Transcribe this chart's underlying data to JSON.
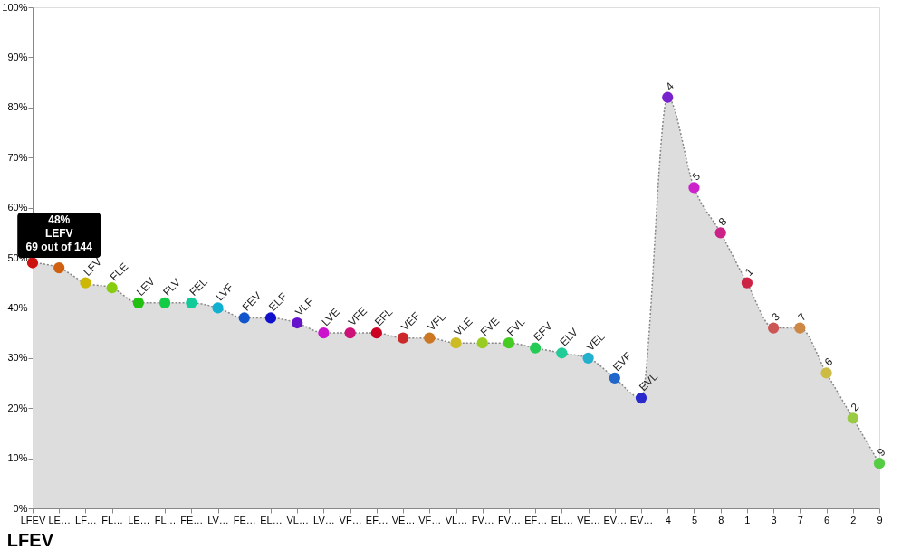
{
  "chart_data": {
    "type": "area",
    "title": "LFEV",
    "categories": [
      "LFEV",
      "LE…",
      "LF…",
      "FL…",
      "LE…",
      "FL…",
      "FE…",
      "LV…",
      "FE…",
      "EL…",
      "VL…",
      "LV…",
      "VF…",
      "EF…",
      "VE…",
      "VF…",
      "VL…",
      "FV…",
      "FV…",
      "EF…",
      "EL…",
      "VE…",
      "EV…",
      "EV…",
      "4",
      "5",
      "8",
      "1",
      "3",
      "7",
      "6",
      "2",
      "9"
    ],
    "values": [
      49,
      48,
      45,
      44,
      41,
      41,
      41,
      40,
      38,
      38,
      37,
      35,
      35,
      35,
      34,
      34,
      33,
      33,
      33,
      32,
      31,
      30,
      26,
      22,
      82,
      64,
      55,
      45,
      36,
      36,
      27,
      18,
      9
    ],
    "colors": [
      "#cc1111",
      "#d06010",
      "#ccb800",
      "#88cc11",
      "#22c010",
      "#11cc44",
      "#11cc99",
      "#11b0d0",
      "#1155cc",
      "#1111cc",
      "#6611cc",
      "#cc11cc",
      "#cc1177",
      "#cc0022",
      "#cc2a2a",
      "#cc7722",
      "#ccbb22",
      "#99cc22",
      "#44cc22",
      "#22cc55",
      "#22cc99",
      "#22b0cc",
      "#2266cc",
      "#2a2acc",
      "#7722cc",
      "#cc22cc",
      "#cc2288",
      "#cc2244",
      "#cc5555",
      "#cc8844",
      "#ccbb44",
      "#99cc44",
      "#55cc44"
    ],
    "color": "#dddddd",
    "ylim": [
      0,
      100
    ],
    "yticks": [
      {
        "value": 0,
        "label": "0%"
      },
      {
        "value": 10,
        "label": "10%"
      },
      {
        "value": 20,
        "label": "20%"
      },
      {
        "value": 30,
        "label": "30%"
      },
      {
        "value": 40,
        "label": "40%"
      },
      {
        "value": 50,
        "label": "50%"
      },
      {
        "value": 60,
        "label": "60%"
      },
      {
        "value": 70,
        "label": "70%"
      },
      {
        "value": 80,
        "label": "80%"
      },
      {
        "value": 90,
        "label": "90%"
      },
      {
        "value": 100,
        "label": "100%"
      }
    ],
    "marker": "circle",
    "line_style": "dotted",
    "grid": false,
    "annotations": [
      {
        "text": "48%\nLEFV\n69 out of 144",
        "x": "LE…",
        "y": 48
      },
      {
        "text": "LFV",
        "x": "LF…",
        "y": 45
      },
      {
        "text": "FLE",
        "x": "FL…",
        "y": 44
      },
      {
        "text": "LEV",
        "y": 41
      },
      {
        "text": "FLV",
        "y": 41
      },
      {
        "text": "FEL",
        "x": "FE…",
        "y": 41
      },
      {
        "text": "LVF",
        "x": "LV…",
        "y": 40
      },
      {
        "text": "FEV",
        "y": 38
      },
      {
        "text": "ELF",
        "x": "EL…",
        "y": 38
      },
      {
        "text": "VLF",
        "x": "VL…",
        "y": 37
      },
      {
        "text": "LVE",
        "y": 35
      },
      {
        "text": "VFE",
        "x": "VF…",
        "y": 35
      },
      {
        "text": "EFL",
        "x": "EF…",
        "y": 35
      },
      {
        "text": "VEF",
        "x": "VE…",
        "y": 34
      },
      {
        "text": "VFL",
        "y": 34
      },
      {
        "text": "VLE",
        "y": 33
      },
      {
        "text": "FVE",
        "x": "FV…",
        "y": 33
      },
      {
        "text": "FVL",
        "y": 33
      },
      {
        "text": "EFV",
        "y": 32
      },
      {
        "text": "ELV",
        "y": 31
      },
      {
        "text": "VEL",
        "y": 30
      },
      {
        "text": "EVF",
        "x": "EV…",
        "y": 26
      },
      {
        "text": "EVL",
        "y": 22
      },
      {
        "text": "4",
        "x": "4",
        "y": 82
      },
      {
        "text": "5",
        "x": "5",
        "y": 64
      },
      {
        "text": "8",
        "x": "8",
        "y": 55
      },
      {
        "text": "1",
        "x": "1",
        "y": 45
      },
      {
        "text": "3",
        "x": "3",
        "y": 36
      },
      {
        "text": "7",
        "x": "7",
        "y": 36
      },
      {
        "text": "6",
        "x": "6",
        "y": 27
      },
      {
        "text": "2",
        "x": "2",
        "y": 18
      },
      {
        "text": "9",
        "x": "9",
        "y": 9
      }
    ]
  }
}
